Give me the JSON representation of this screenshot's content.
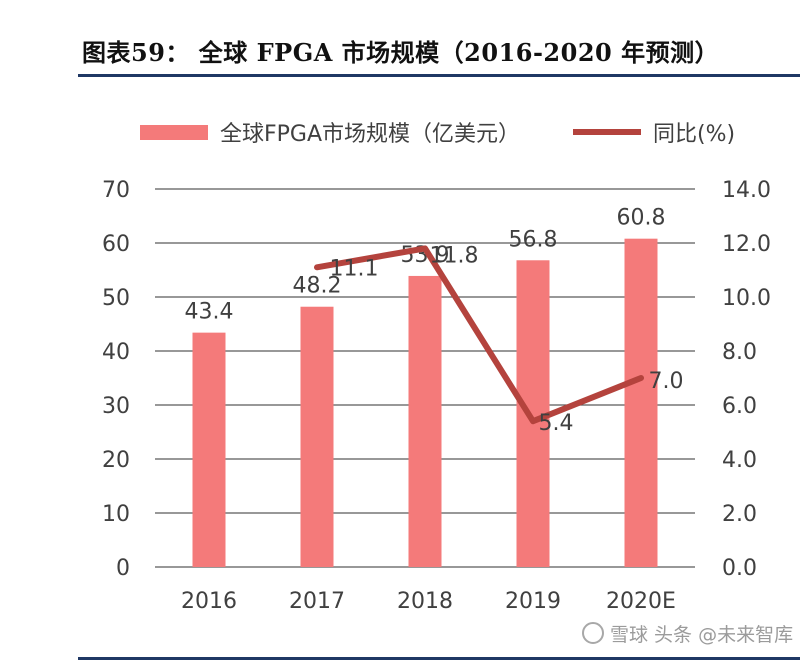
{
  "figure": {
    "title": "图表59： 全球 FPGA 市场规模（2016-2020 年预测）"
  },
  "watermark": {
    "text": "雪球 头条 @未来智库"
  },
  "colors": {
    "bar": "#f47a7a",
    "line": "#b4433d",
    "grid": "#5a5a5a",
    "rule": "#1f3864"
  },
  "chart_data": {
    "type": "bar",
    "categories": [
      "2016",
      "2017",
      "2018",
      "2019",
      "2020E"
    ],
    "series": [
      {
        "name": "全球FPGA市场规模（亿美元）",
        "type": "bar",
        "axis": "left",
        "values": [
          43.4,
          48.2,
          53.9,
          56.8,
          60.8
        ],
        "labels": [
          "43.4",
          "48.2",
          "53.9",
          "56.8",
          "60.8"
        ]
      },
      {
        "name": "同比(%)",
        "type": "line",
        "axis": "right",
        "values": [
          null,
          11.1,
          11.8,
          5.4,
          7.0
        ],
        "labels": [
          "",
          "11.1",
          "11.8",
          "5.4",
          "7.0"
        ]
      }
    ],
    "y_left": {
      "min": 0,
      "max": 70,
      "ticks": [
        "0",
        "10",
        "20",
        "30",
        "40",
        "50",
        "60",
        "70"
      ]
    },
    "y_right": {
      "min": 0,
      "max": 14,
      "ticks": [
        "0.0",
        "2.0",
        "4.0",
        "6.0",
        "8.0",
        "10.0",
        "12.0",
        "14.0"
      ]
    },
    "grid": true,
    "legend": "top"
  }
}
